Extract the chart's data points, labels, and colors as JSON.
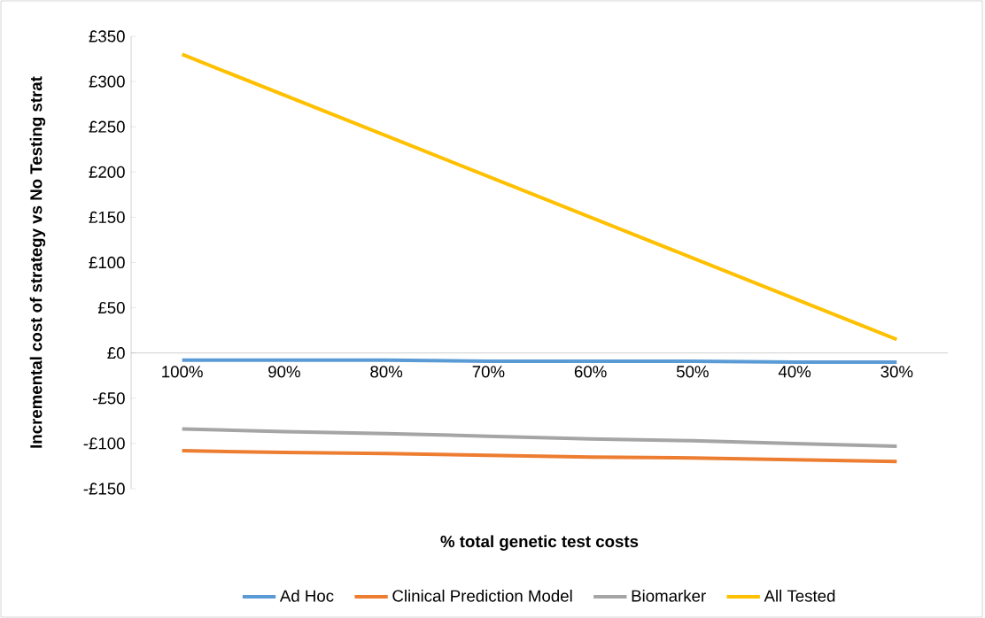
{
  "chart_data": {
    "type": "line",
    "ylabel": "Incremental cost of strategy vs No Testing strat",
    "xlabel": "% total genetic test costs",
    "categories": [
      "100%",
      "90%",
      "80%",
      "70%",
      "60%",
      "50%",
      "40%",
      "30%"
    ],
    "series": [
      {
        "name": "Ad Hoc",
        "color": "#5b9bd5",
        "values": [
          -8,
          -8,
          -8,
          -9,
          -9,
          -9,
          -10,
          -10
        ]
      },
      {
        "name": "Clinical Prediction Model",
        "color": "#ed7d31",
        "values": [
          -108,
          -110,
          -111,
          -113,
          -115,
          -116,
          -118,
          -120
        ]
      },
      {
        "name": "Biomarker",
        "color": "#a5a5a5",
        "values": [
          -84,
          -87,
          -89,
          -92,
          -95,
          -97,
          -100,
          -103
        ]
      },
      {
        "name": "All Tested",
        "color": "#ffc000",
        "values": [
          330,
          285,
          240,
          195,
          150,
          105,
          60,
          15
        ]
      }
    ],
    "ylim": [
      -150,
      350
    ],
    "yticks": [
      {
        "value": -150,
        "label": "-£150"
      },
      {
        "value": -100,
        "label": "-£100"
      },
      {
        "value": -50,
        "label": "-£50"
      },
      {
        "value": 0,
        "label": "£0"
      },
      {
        "value": 50,
        "label": "£50"
      },
      {
        "value": 100,
        "label": "£100"
      },
      {
        "value": 150,
        "label": "£150"
      },
      {
        "value": 200,
        "label": "£200"
      },
      {
        "value": 250,
        "label": "£250"
      },
      {
        "value": 300,
        "label": "£300"
      },
      {
        "value": 350,
        "label": "£350"
      }
    ],
    "legend": "bottom"
  }
}
